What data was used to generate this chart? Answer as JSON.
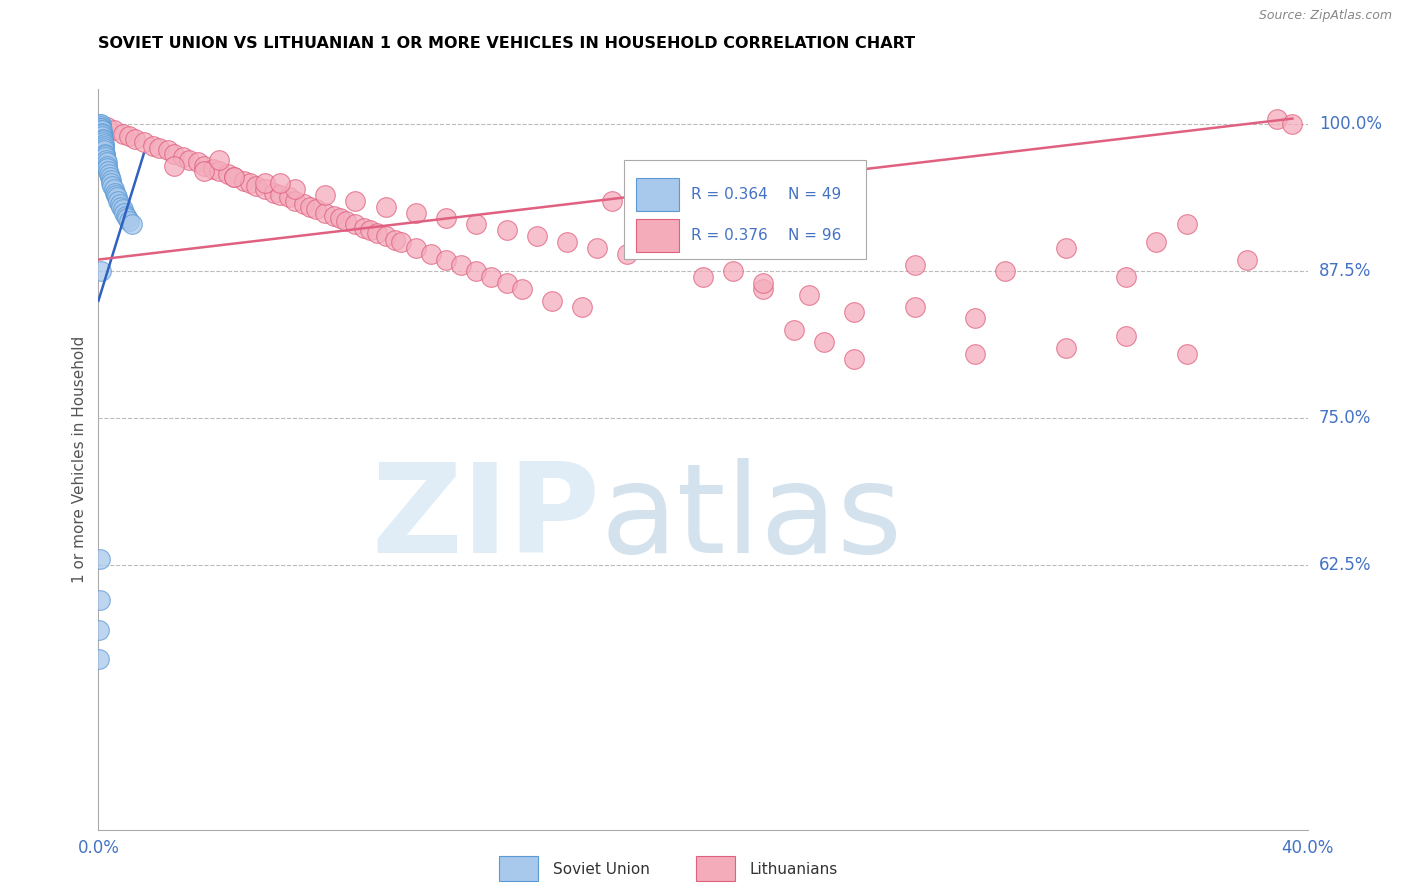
{
  "title": "SOVIET UNION VS LITHUANIAN 1 OR MORE VEHICLES IN HOUSEHOLD CORRELATION CHART",
  "source": "Source: ZipAtlas.com",
  "ylabel": "1 or more Vehicles in Household",
  "x_min": 0.0,
  "x_max": 40.0,
  "y_min": 40.0,
  "y_max": 103.0,
  "right_yticks": [
    62.5,
    75.0,
    87.5,
    100.0
  ],
  "right_ytick_labels": [
    "62.5%",
    "75.0%",
    "87.5%",
    "100.0%"
  ],
  "soviet_color": "#A8C8EC",
  "soviet_edge_color": "#5B9BD5",
  "lithuanian_color": "#F4ACBB",
  "lithuanian_edge_color": "#E06080",
  "soviet_R": 0.364,
  "soviet_N": 49,
  "lithuanian_R": 0.376,
  "lithuanian_N": 96,
  "soviet_line_color": "#3060C0",
  "lithuanian_line_color": "#E06080",
  "legend_soviet_label": "Soviet Union",
  "legend_lithuanian_label": "Lithuanians",
  "background_color": "#FFFFFF",
  "grid_color": "#BBBBBB",
  "axis_label_color": "#4472C4",
  "title_color": "#000000",
  "soviet_x": [
    0.05,
    0.06,
    0.07,
    0.08,
    0.09,
    0.1,
    0.1,
    0.11,
    0.12,
    0.12,
    0.13,
    0.14,
    0.15,
    0.16,
    0.17,
    0.18,
    0.19,
    0.2,
    0.21,
    0.22,
    0.23,
    0.25,
    0.27,
    0.28,
    0.3,
    0.32,
    0.35,
    0.38,
    0.4,
    0.42,
    0.45,
    0.5,
    0.55,
    0.58,
    0.6,
    0.65,
    0.7,
    0.75,
    0.8,
    0.85,
    0.9,
    0.95,
    1.0,
    1.1,
    0.08,
    0.05,
    0.04,
    0.03,
    0.02
  ],
  "soviet_y": [
    100.0,
    99.8,
    100.0,
    99.9,
    99.7,
    99.7,
    99.5,
    99.5,
    99.3,
    99.2,
    99.0,
    98.8,
    98.7,
    98.5,
    98.3,
    98.2,
    98.0,
    97.8,
    97.5,
    97.4,
    97.2,
    97.0,
    96.8,
    96.5,
    96.3,
    96.0,
    95.8,
    95.5,
    95.3,
    95.0,
    94.8,
    94.5,
    94.2,
    94.0,
    93.8,
    93.5,
    93.2,
    93.0,
    92.8,
    92.5,
    92.2,
    92.0,
    91.8,
    91.5,
    87.5,
    63.0,
    59.5,
    57.0,
    54.5
  ],
  "lithuanian_x": [
    0.3,
    0.5,
    0.8,
    1.0,
    1.2,
    1.5,
    1.8,
    2.0,
    2.3,
    2.5,
    2.8,
    3.0,
    3.3,
    3.5,
    3.8,
    4.0,
    4.3,
    4.5,
    4.8,
    5.0,
    5.2,
    5.5,
    5.8,
    6.0,
    6.3,
    6.5,
    6.8,
    7.0,
    7.2,
    7.5,
    7.8,
    8.0,
    8.2,
    8.5,
    8.8,
    9.0,
    9.2,
    9.5,
    9.8,
    10.0,
    10.5,
    11.0,
    11.5,
    12.0,
    12.5,
    13.0,
    13.5,
    14.0,
    15.0,
    16.0,
    17.0,
    18.0,
    19.0,
    20.0,
    21.0,
    22.0,
    23.0,
    24.0,
    25.0,
    27.0,
    29.0,
    30.0,
    32.0,
    34.0,
    35.0,
    36.0,
    38.0,
    39.0,
    2.5,
    3.5,
    4.5,
    5.5,
    6.5,
    7.5,
    8.5,
    9.5,
    10.5,
    11.5,
    12.5,
    13.5,
    14.5,
    15.5,
    16.5,
    17.5,
    20.0,
    22.0,
    23.5,
    25.0,
    27.0,
    29.0,
    32.0,
    34.0,
    36.0,
    39.5,
    4.0,
    6.0
  ],
  "lithuanian_y": [
    99.8,
    99.5,
    99.2,
    99.0,
    98.8,
    98.5,
    98.2,
    98.0,
    97.8,
    97.5,
    97.2,
    97.0,
    96.8,
    96.5,
    96.2,
    96.0,
    95.8,
    95.5,
    95.2,
    95.0,
    94.8,
    94.5,
    94.2,
    94.0,
    93.8,
    93.5,
    93.2,
    93.0,
    92.8,
    92.5,
    92.2,
    92.0,
    91.8,
    91.5,
    91.2,
    91.0,
    90.8,
    90.5,
    90.2,
    90.0,
    89.5,
    89.0,
    88.5,
    88.0,
    87.5,
    87.0,
    86.5,
    86.0,
    85.0,
    84.5,
    93.5,
    93.0,
    92.5,
    92.0,
    87.5,
    86.0,
    82.5,
    81.5,
    80.0,
    88.0,
    80.5,
    87.5,
    89.5,
    87.0,
    90.0,
    91.5,
    88.5,
    100.5,
    96.5,
    96.0,
    95.5,
    95.0,
    94.5,
    94.0,
    93.5,
    93.0,
    92.5,
    92.0,
    91.5,
    91.0,
    90.5,
    90.0,
    89.5,
    89.0,
    87.0,
    86.5,
    85.5,
    84.0,
    84.5,
    83.5,
    81.0,
    82.0,
    80.5,
    100.0,
    97.0,
    95.0
  ],
  "soviet_line_x": [
    0.0,
    1.5
  ],
  "soviet_line_y": [
    85.0,
    97.5
  ],
  "lith_line_x": [
    0.0,
    39.5
  ],
  "lith_line_y": [
    88.5,
    100.5
  ]
}
